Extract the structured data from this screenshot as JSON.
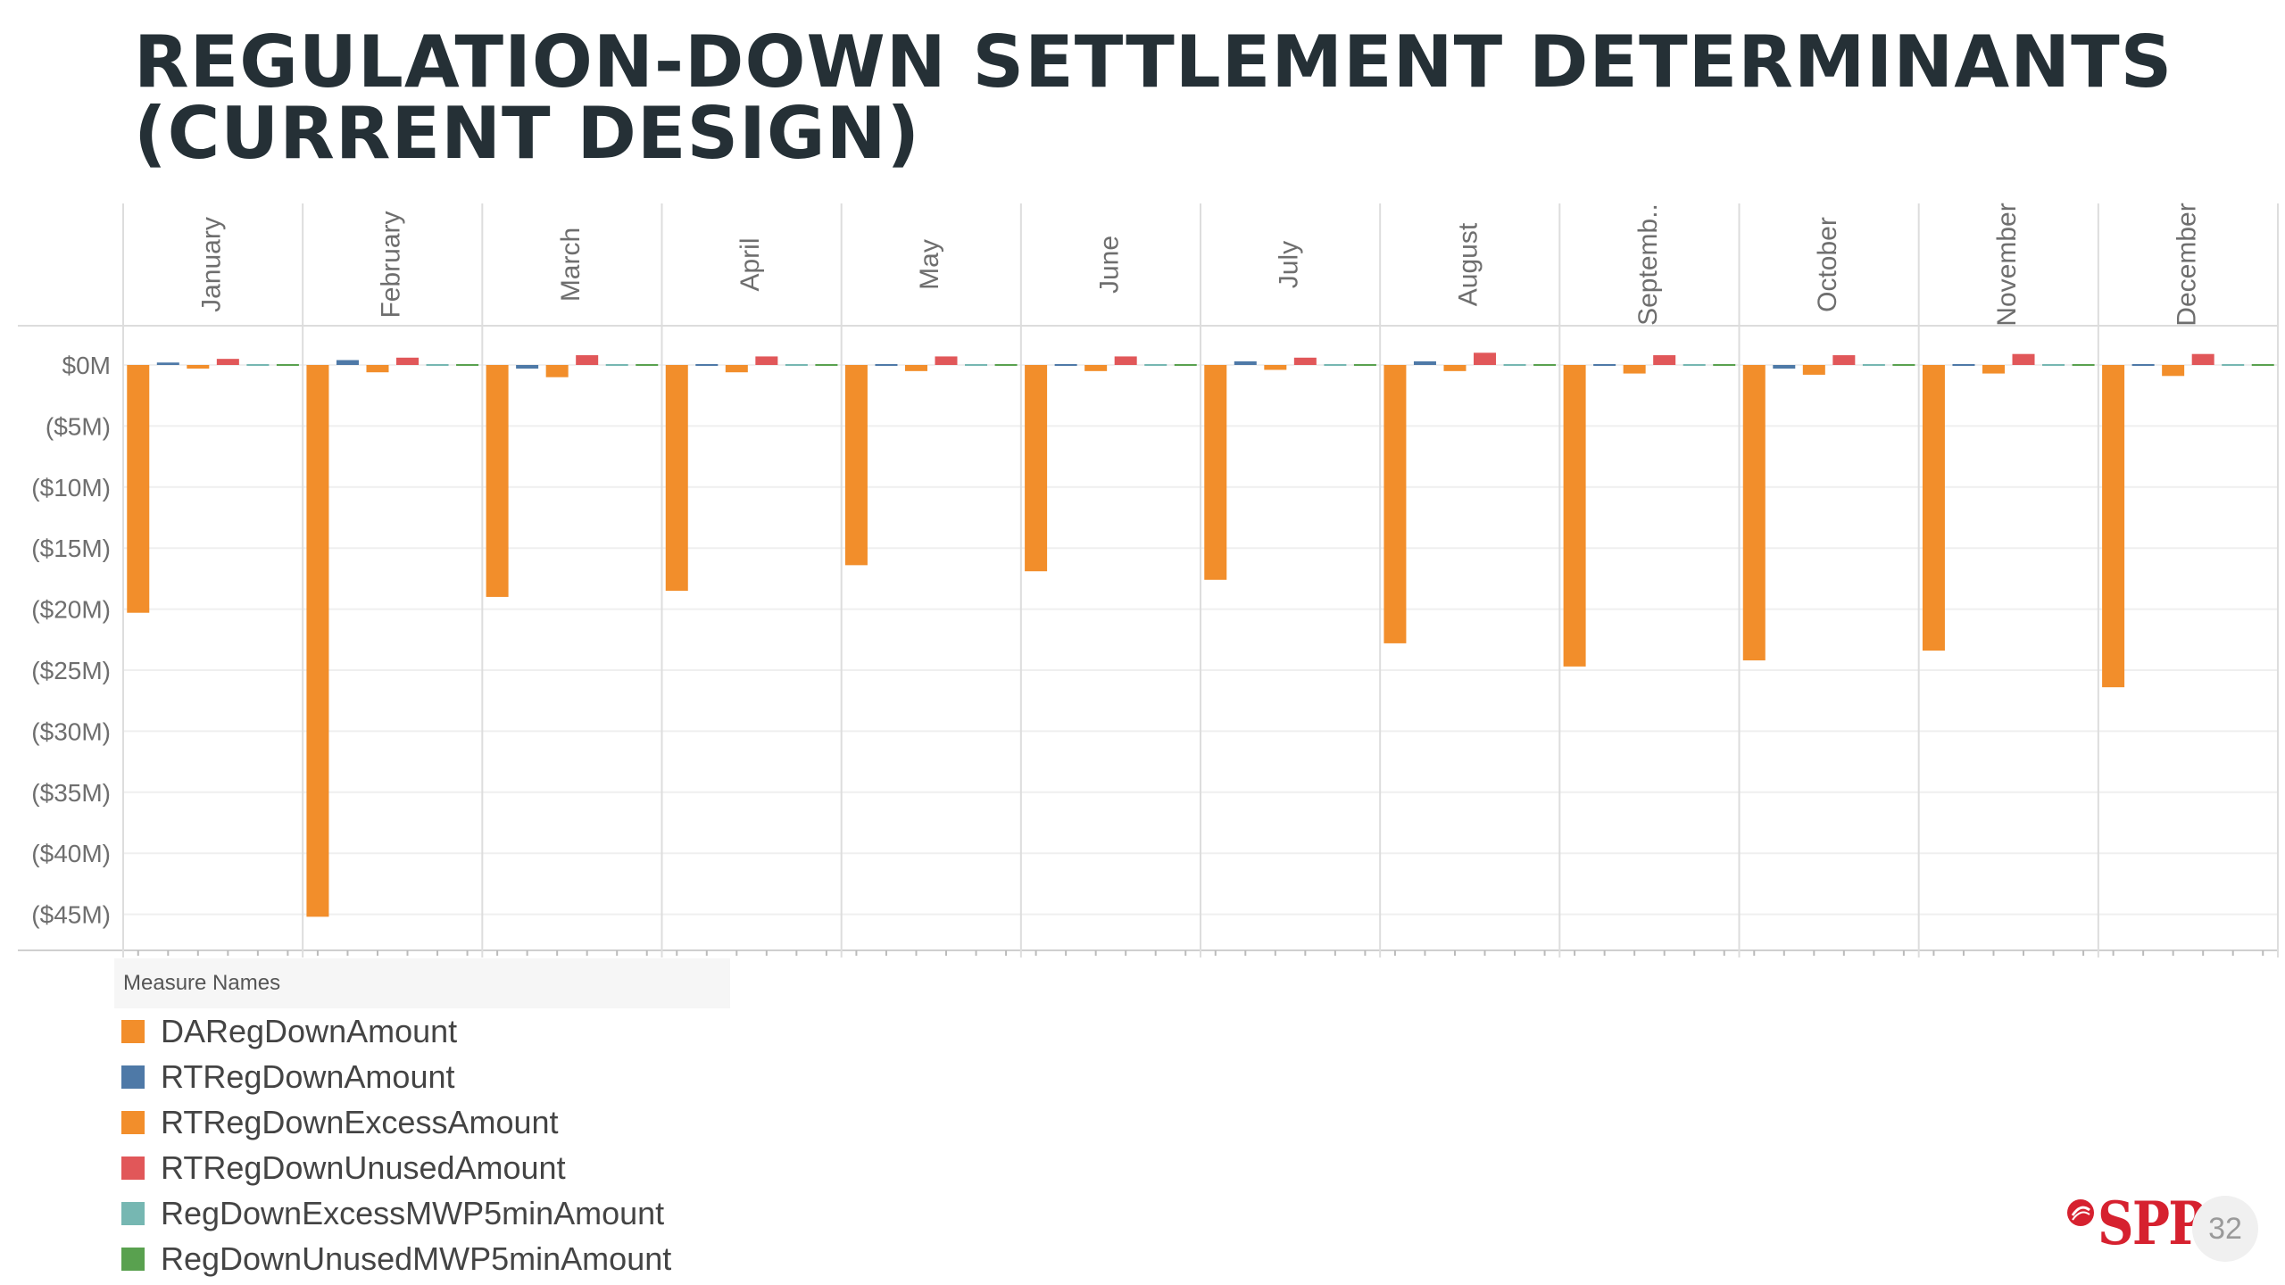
{
  "title": {
    "line1": "REGULATION-DOWN SETTLEMENT DETERMINANTS",
    "line2": "(CURRENT DESIGN)"
  },
  "legend": {
    "header": "Measure Names"
  },
  "chart_data": {
    "type": "bar",
    "categories": [
      "January",
      "February",
      "March",
      "April",
      "May",
      "June",
      "July",
      "August",
      "Septemb..",
      "October",
      "November",
      "December"
    ],
    "yticks": [
      {
        "value": 0,
        "label": "$0M"
      },
      {
        "value": -5,
        "label": "($5M)"
      },
      {
        "value": -10,
        "label": "($10M)"
      },
      {
        "value": -15,
        "label": "($15M)"
      },
      {
        "value": -20,
        "label": "($20M)"
      },
      {
        "value": -25,
        "label": "($25M)"
      },
      {
        "value": -30,
        "label": "($30M)"
      },
      {
        "value": -35,
        "label": "($35M)"
      },
      {
        "value": -40,
        "label": "($40M)"
      },
      {
        "value": -45,
        "label": "($45M)"
      }
    ],
    "ylim": [
      -48,
      3
    ],
    "ylabel": "",
    "xlabel": "",
    "title": "",
    "legend_position": "bottom-left",
    "grid": true,
    "series": [
      {
        "name": "DARegDownAmount",
        "color": "#F28E2B",
        "values": [
          -20.3,
          -45.2,
          -19.0,
          -18.5,
          -16.4,
          -16.9,
          -17.6,
          -22.8,
          -24.7,
          -24.2,
          -23.4,
          -26.4
        ]
      },
      {
        "name": "RTRegDownAmount",
        "color": "#4E79A7",
        "values": [
          0.2,
          0.4,
          -0.3,
          -0.1,
          0.1,
          0.1,
          0.3,
          0.3,
          -0.1,
          -0.3,
          0.1,
          0.1
        ]
      },
      {
        "name": "RTRegDownExcessAmount",
        "color": "#F28E2B",
        "values": [
          -0.3,
          -0.6,
          -1.0,
          -0.6,
          -0.5,
          -0.5,
          -0.4,
          -0.5,
          -0.7,
          -0.8,
          -0.7,
          -0.9
        ]
      },
      {
        "name": "RTRegDownUnusedAmount",
        "color": "#E15759",
        "values": [
          0.5,
          0.6,
          0.8,
          0.7,
          0.7,
          0.7,
          0.6,
          1.0,
          0.8,
          0.8,
          0.9,
          0.9
        ]
      },
      {
        "name": "RegDownExcessMWP5minAmount",
        "color": "#76B7B2",
        "values": [
          0,
          0,
          0,
          0,
          0,
          0,
          0,
          0,
          0,
          0,
          0,
          0
        ]
      },
      {
        "name": "RegDownUnusedMWP5minAmount",
        "color": "#59A14F",
        "values": [
          0,
          0,
          0,
          0,
          0,
          0,
          0,
          0,
          0,
          0,
          0,
          0
        ]
      }
    ]
  },
  "logo": {
    "text": "SPP",
    "mark": "spp-logo-mark"
  },
  "page_number": "32"
}
